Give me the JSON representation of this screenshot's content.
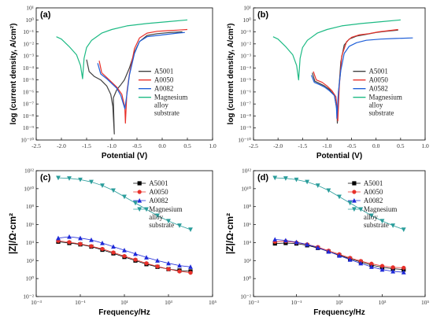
{
  "chart_data": [
    {
      "panel": "(a)",
      "type": "line",
      "xlabel": "Potential (V)",
      "ylabel": "log (current density, A/cm²)",
      "xlim": [
        -2.5,
        1.0
      ],
      "ylim_exp": [
        -10,
        1
      ],
      "log_y": true,
      "xticks": [
        "-2.5",
        "-2.0",
        "-1.5",
        "-1.0",
        "-0.5",
        "0.0",
        "0.5",
        "1.0"
      ],
      "yticks": [
        "10⁻¹⁰",
        "10⁻⁹",
        "10⁻⁸",
        "10⁻⁷",
        "10⁻⁶",
        "10⁻⁵",
        "10⁻⁴",
        "10⁻³",
        "10⁻²",
        "10⁻¹",
        "10⁰",
        "10¹"
      ],
      "legend": "top-right-inside",
      "series": [
        {
          "name": "A5001",
          "color": "#404040",
          "x": [
            -1.5,
            -1.45,
            -1.35,
            -1.22,
            -1.1,
            -1.02,
            -0.98,
            -0.95,
            -0.97,
            -0.9,
            -0.82,
            -0.75,
            -0.65,
            -0.55,
            -0.45,
            -0.3,
            -0.1,
            0.15,
            0.4
          ],
          "y": [
            -3.3,
            -4.3,
            -4.7,
            -5.0,
            -5.5,
            -6.2,
            -7.2,
            -9.5,
            -6.5,
            -5.8,
            -5.4,
            -5.0,
            -4.0,
            -2.7,
            -1.8,
            -1.3,
            -1.15,
            -1.05,
            -1.0
          ]
        },
        {
          "name": "A0050",
          "color": "#e8302a",
          "x": [
            -1.25,
            -1.2,
            -1.1,
            -1.0,
            -0.9,
            -0.8,
            -0.74,
            -0.73,
            -0.7,
            -0.65,
            -0.55,
            -0.45,
            -0.3,
            -0.1,
            0.1,
            0.3,
            0.5
          ],
          "y": [
            -3.4,
            -4.4,
            -4.8,
            -5.2,
            -5.6,
            -6.2,
            -7.3,
            -8.6,
            -6.0,
            -4.5,
            -2.4,
            -1.5,
            -1.1,
            -0.95,
            -0.9,
            -0.85,
            -0.8
          ]
        },
        {
          "name": "A0082",
          "color": "#1f5fd8",
          "x": [
            -1.28,
            -1.22,
            -1.1,
            -1.0,
            -0.9,
            -0.82,
            -0.77,
            -0.74,
            -0.7,
            -0.65,
            -0.55,
            -0.45,
            -0.3,
            -0.1,
            0.1,
            0.3,
            0.45
          ],
          "y": [
            -3.6,
            -4.5,
            -4.9,
            -5.3,
            -5.7,
            -6.3,
            -7.0,
            -7.4,
            -6.2,
            -4.6,
            -2.8,
            -1.8,
            -1.4,
            -1.3,
            -1.2,
            -1.1,
            -1.05
          ]
        },
        {
          "name": "Magnesium alloy substrate",
          "color": "#1dba84",
          "x": [
            -2.1,
            -2.0,
            -1.85,
            -1.7,
            -1.62,
            -1.58,
            -1.55,
            -1.5,
            -1.4,
            -1.2,
            -1.0,
            -0.7,
            -0.3,
            0.1,
            0.5
          ],
          "y": [
            -1.4,
            -1.6,
            -2.2,
            -2.9,
            -3.8,
            -4.9,
            -3.2,
            -2.3,
            -1.7,
            -1.1,
            -0.8,
            -0.5,
            -0.3,
            -0.15,
            0.0
          ]
        }
      ]
    },
    {
      "panel": "(b)",
      "type": "line",
      "xlabel": "Potential (V)",
      "ylabel": "log (current density, A/cm²)",
      "xlim": [
        -2.5,
        1.0
      ],
      "ylim_exp": [
        -10,
        1
      ],
      "log_y": true,
      "xticks": [
        "-2.5",
        "-2.0",
        "-1.5",
        "-1.0",
        "-0.5",
        "0.0",
        "0.5",
        "1.0"
      ],
      "yticks": [
        "10⁻¹⁰",
        "10⁻⁹",
        "10⁻⁸",
        "10⁻⁷",
        "10⁻⁶",
        "10⁻⁵",
        "10⁻⁴",
        "10⁻³",
        "10⁻²",
        "10⁻¹",
        "10⁰",
        "10¹"
      ],
      "legend": "top-right-inside",
      "series": [
        {
          "name": "A5001",
          "color": "#404040",
          "x": [
            -1.3,
            -1.25,
            -1.15,
            -1.05,
            -0.95,
            -0.85,
            -0.8,
            -0.79,
            -0.76,
            -0.72,
            -0.65,
            -0.55,
            -0.4,
            -0.2,
            0.0,
            0.2,
            0.45
          ],
          "y": [
            -4.4,
            -5.1,
            -5.3,
            -5.5,
            -5.8,
            -6.3,
            -7.5,
            -8.6,
            -5.8,
            -3.5,
            -2.1,
            -1.6,
            -1.35,
            -1.2,
            -1.05,
            -0.95,
            -0.85
          ]
        },
        {
          "name": "A0050",
          "color": "#e8302a",
          "x": [
            -1.28,
            -1.22,
            -1.1,
            -1.0,
            -0.9,
            -0.82,
            -0.79,
            -0.78,
            -0.75,
            -0.7,
            -0.6,
            -0.5,
            -0.35,
            -0.15,
            0.05,
            0.25,
            0.45
          ],
          "y": [
            -4.3,
            -5.0,
            -5.2,
            -5.5,
            -5.9,
            -6.4,
            -7.6,
            -8.4,
            -5.5,
            -3.0,
            -1.8,
            -1.45,
            -1.25,
            -1.15,
            -1.0,
            -0.9,
            -0.8
          ]
        },
        {
          "name": "A0582",
          "color": "#1f5fd8",
          "x": [
            -1.32,
            -1.26,
            -1.15,
            -1.05,
            -0.95,
            -0.85,
            -0.81,
            -0.8,
            -0.77,
            -0.72,
            -0.65,
            -0.55,
            -0.4,
            -0.2,
            0.1,
            0.4,
            0.75
          ],
          "y": [
            -4.6,
            -5.2,
            -5.4,
            -5.6,
            -5.9,
            -6.3,
            -7.2,
            -8.2,
            -6.0,
            -4.2,
            -2.8,
            -2.2,
            -1.9,
            -1.7,
            -1.6,
            -1.55,
            -1.5
          ]
        },
        {
          "name": "Magnesium alloy substrate",
          "color": "#1dba84",
          "x": [
            -2.1,
            -2.0,
            -1.85,
            -1.7,
            -1.62,
            -1.58,
            -1.55,
            -1.5,
            -1.4,
            -1.2,
            -1.0,
            -0.7,
            -0.3,
            0.1,
            0.5
          ],
          "y": [
            -1.4,
            -1.6,
            -2.2,
            -2.9,
            -3.8,
            -5.0,
            -3.2,
            -2.3,
            -1.7,
            -1.1,
            -0.8,
            -0.5,
            -0.3,
            -0.15,
            0.0
          ]
        }
      ]
    },
    {
      "panel": "(c)",
      "type": "scatter",
      "xlabel": "Frequency/Hz",
      "ylabel": "|Z|/Ω·cm²",
      "log_x": true,
      "log_y": true,
      "xlim_exp": [
        -3,
        5
      ],
      "ylim_exp": [
        -2,
        12
      ],
      "xticks": [
        "10⁻³",
        "10⁻¹",
        "10¹",
        "10³",
        "10⁵"
      ],
      "yticks": [
        "10⁻²",
        "10⁰",
        "10²",
        "10⁴",
        "10⁶",
        "10⁸",
        "10¹⁰",
        "10¹²"
      ],
      "legend": "top-right-inside",
      "series": [
        {
          "name": "A5001",
          "color": "#000000",
          "marker": "square",
          "logf": [
            -2.0,
            -1.5,
            -1.0,
            -0.5,
            0.0,
            0.5,
            1.0,
            1.5,
            2.0,
            2.5,
            3.0,
            3.5,
            4.0
          ],
          "logz": [
            4.1,
            3.95,
            3.8,
            3.55,
            3.2,
            2.8,
            2.4,
            2.0,
            1.6,
            1.3,
            1.05,
            0.9,
            0.8
          ]
        },
        {
          "name": "A0050",
          "color": "#e8302a",
          "marker": "circle",
          "logf": [
            -2.0,
            -1.5,
            -1.0,
            -0.5,
            0.0,
            0.5,
            1.0,
            1.5,
            2.0,
            2.5,
            3.0,
            3.5,
            4.0
          ],
          "logz": [
            4.2,
            4.05,
            3.85,
            3.6,
            3.3,
            2.9,
            2.5,
            2.1,
            1.7,
            1.35,
            1.05,
            0.8,
            0.65
          ]
        },
        {
          "name": "A0082",
          "color": "#1f2ad8",
          "marker": "triangle",
          "logf": [
            -2.0,
            -1.5,
            -1.0,
            -0.5,
            0.0,
            0.5,
            1.0,
            1.5,
            2.0,
            2.5,
            3.0,
            3.5,
            4.0
          ],
          "logz": [
            4.5,
            4.65,
            4.5,
            4.3,
            3.95,
            3.55,
            3.15,
            2.75,
            2.35,
            2.0,
            1.7,
            1.45,
            1.3
          ]
        },
        {
          "name": "Magnesium alloy substrate",
          "color": "#2a9d9b",
          "marker": "triangle-down",
          "logf": [
            -2.0,
            -1.5,
            -1.0,
            -0.5,
            0.0,
            0.5,
            1.0,
            1.5,
            2.0,
            2.5,
            3.0,
            3.5,
            4.0
          ],
          "logz": [
            11.2,
            11.15,
            11.0,
            10.75,
            10.35,
            9.8,
            9.1,
            8.4,
            7.7,
            7.0,
            6.4,
            5.9,
            5.45
          ]
        }
      ]
    },
    {
      "panel": "(d)",
      "type": "scatter",
      "xlabel": "Frequency/Hz",
      "ylabel": "|Z|/Ω·cm²",
      "log_x": true,
      "log_y": true,
      "xlim_exp": [
        -3,
        5
      ],
      "ylim_exp": [
        -2,
        12
      ],
      "xticks": [
        "10⁻³",
        "10⁻¹",
        "10¹",
        "10³",
        "10⁵"
      ],
      "yticks": [
        "10⁻²",
        "10⁰",
        "10²",
        "10⁴",
        "10⁶",
        "10⁸",
        "10¹⁰",
        "10¹²"
      ],
      "legend": "top-right-inside",
      "series": [
        {
          "name": "A5001",
          "color": "#000000",
          "marker": "square",
          "logf": [
            -2.0,
            -1.5,
            -1.0,
            -0.5,
            0.0,
            0.5,
            1.0,
            1.5,
            2.0,
            2.5,
            3.0,
            3.5,
            4.0
          ],
          "logz": [
            3.9,
            3.95,
            3.9,
            3.7,
            3.4,
            3.0,
            2.6,
            2.2,
            1.85,
            1.5,
            1.25,
            1.1,
            1.0
          ]
        },
        {
          "name": "A0050",
          "color": "#e8302a",
          "marker": "circle",
          "logf": [
            -2.0,
            -1.5,
            -1.0,
            -0.5,
            0.0,
            0.5,
            1.0,
            1.5,
            2.0,
            2.5,
            3.0,
            3.5,
            4.0
          ],
          "logz": [
            4.1,
            4.15,
            4.0,
            3.8,
            3.5,
            3.1,
            2.7,
            2.3,
            1.95,
            1.65,
            1.4,
            1.25,
            1.2
          ]
        },
        {
          "name": "A0082",
          "color": "#1f2ad8",
          "marker": "triangle",
          "logf": [
            -2.0,
            -1.5,
            -1.0,
            -0.5,
            0.0,
            0.5,
            1.0,
            1.5,
            2.0,
            2.5,
            3.0,
            3.5,
            4.0
          ],
          "logz": [
            4.35,
            4.25,
            4.05,
            3.8,
            3.45,
            3.0,
            2.55,
            2.1,
            1.7,
            1.3,
            1.0,
            0.8,
            0.7
          ]
        },
        {
          "name": "Magnesium alloy substrate",
          "color": "#2a9d9b",
          "marker": "triangle-down",
          "logf": [
            -2.0,
            -1.5,
            -1.0,
            -0.5,
            0.0,
            0.5,
            1.0,
            1.5,
            2.0,
            2.5,
            3.0,
            3.5,
            4.0
          ],
          "logz": [
            11.2,
            11.15,
            11.0,
            10.75,
            10.35,
            9.8,
            9.1,
            8.4,
            7.7,
            7.0,
            6.4,
            5.9,
            5.45
          ]
        }
      ]
    }
  ]
}
